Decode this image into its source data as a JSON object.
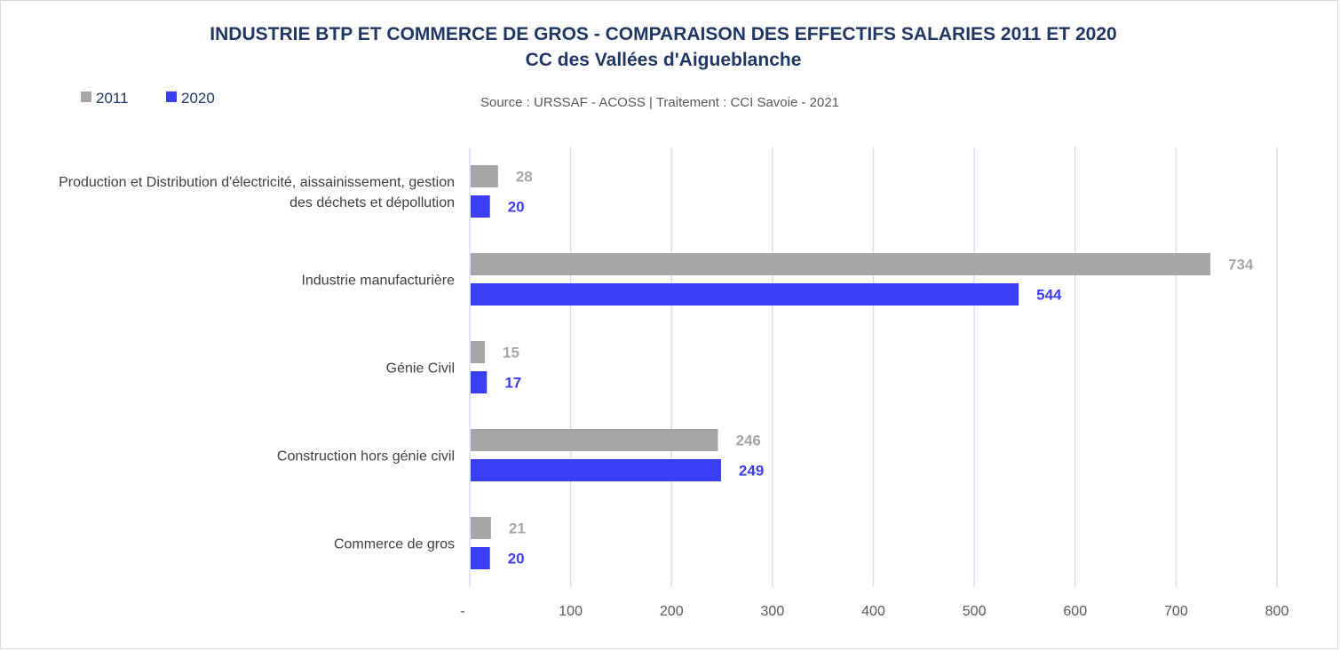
{
  "colors": {
    "series_2011": "#a6a6a6",
    "series_2020": "#3a3ef5",
    "label_2011": "#a6a6a6",
    "label_2020": "#3a3ef5",
    "title": "#1f3864",
    "grid": "#d6e0ef"
  },
  "chart_data": {
    "type": "bar",
    "orientation": "horizontal",
    "title": "INDUSTRIE BTP ET COMMERCE DE GROS - COMPARAISON DES EFFECTIFS SALARIES 2011 ET 2020",
    "subtitle": "CC des Vallées d'Aigueblanche",
    "source": "Source : URSSAF - ACOSS  |  Traitement : CCI Savoie - 2021",
    "legend_position": "top-left",
    "categories": [
      "Production et Distribution d'électricité, aissainissement, gestion des déchets et dépollution",
      "Industrie manufacturière",
      "Génie Civil",
      "Construction hors génie civil",
      "Commerce de gros"
    ],
    "category_lines": [
      [
        "Production et Distribution d'électricité, aissainissement, gestion",
        "des déchets et dépollution"
      ],
      [
        "Industrie manufacturière"
      ],
      [
        "Génie Civil"
      ],
      [
        "Construction hors génie civil"
      ],
      [
        "Commerce de gros"
      ]
    ],
    "series": [
      {
        "name": "2011",
        "values": [
          28,
          734,
          15,
          246,
          21
        ]
      },
      {
        "name": "2020",
        "values": [
          20,
          544,
          17,
          249,
          20
        ]
      }
    ],
    "xlim": [
      0,
      800
    ],
    "xticks": [
      0,
      100,
      200,
      300,
      400,
      500,
      600,
      700,
      800
    ],
    "xtick_labels": [
      "-",
      "100",
      "200",
      "300",
      "400",
      "500",
      "600",
      "700",
      "800"
    ],
    "grid": true,
    "xlabel": "",
    "ylabel": ""
  }
}
